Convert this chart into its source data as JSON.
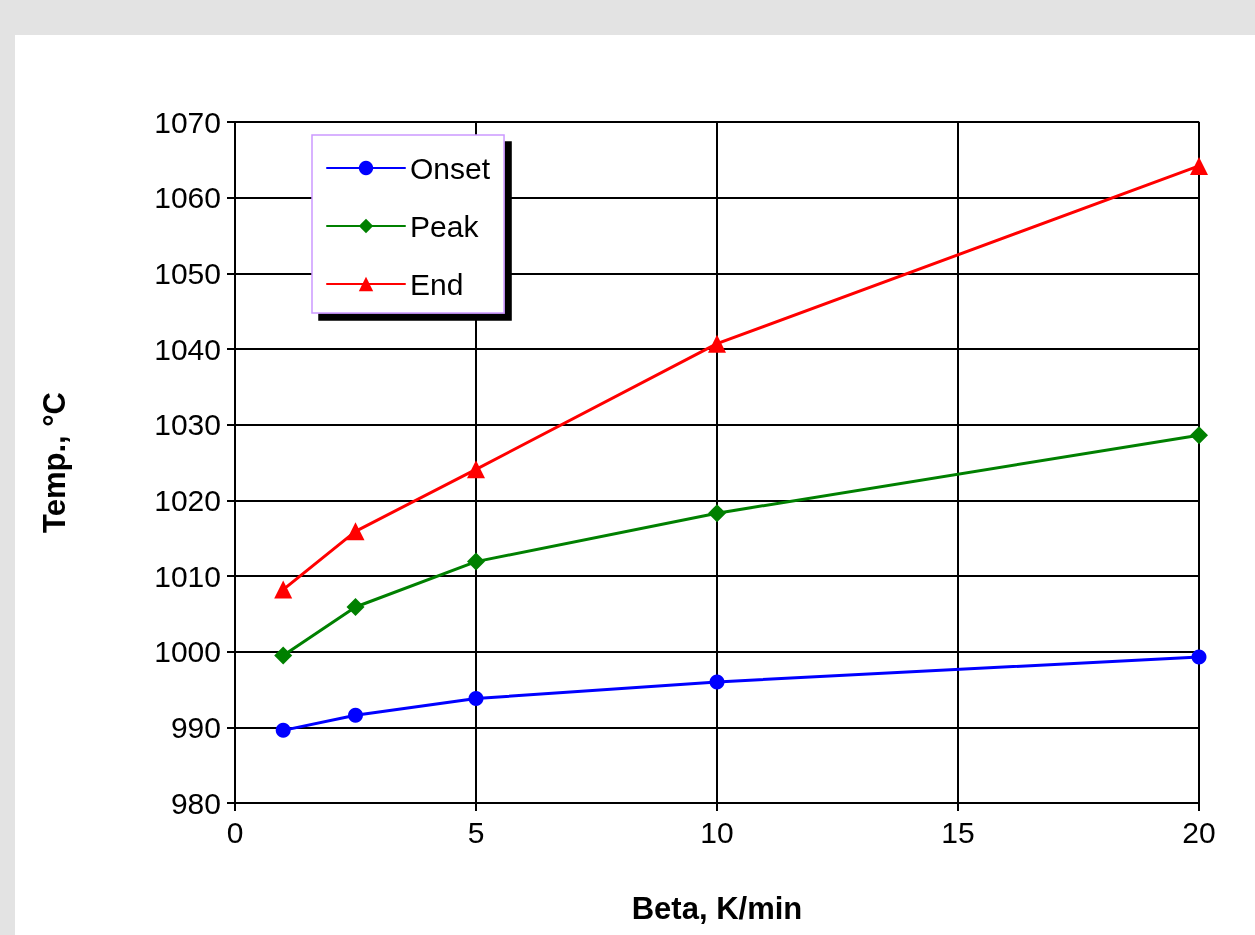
{
  "chart_data": {
    "type": "line",
    "xlabel": "Beta, K/min",
    "ylabel": "Temp., °C",
    "xlim": [
      0,
      20
    ],
    "xticks": [
      0,
      5,
      10,
      15,
      20
    ],
    "ylim": [
      980,
      1070
    ],
    "yticks": [
      980,
      990,
      1000,
      1010,
      1020,
      1030,
      1040,
      1050,
      1060,
      1070
    ],
    "grid": true,
    "legend": "top left",
    "line_style": "solid",
    "series": [
      {
        "name": "Onset",
        "color": "#0000ff",
        "marker": "circle",
        "x": [
          1,
          2.5,
          5,
          10,
          20
        ],
        "values": [
          989.6,
          991.6,
          993.8,
          996.0,
          999.3
        ]
      },
      {
        "name": "Peak",
        "color": "#008000",
        "marker": "diamond",
        "x": [
          1,
          2.5,
          5,
          10,
          20
        ],
        "values": [
          999.5,
          1005.9,
          1011.9,
          1018.3,
          1028.6
        ]
      },
      {
        "name": "End",
        "color": "#ff0000",
        "marker": "triangle",
        "x": [
          1,
          2.5,
          5,
          10,
          20
        ],
        "values": [
          1008.2,
          1015.9,
          1024.1,
          1040.7,
          1064.2
        ]
      }
    ]
  }
}
